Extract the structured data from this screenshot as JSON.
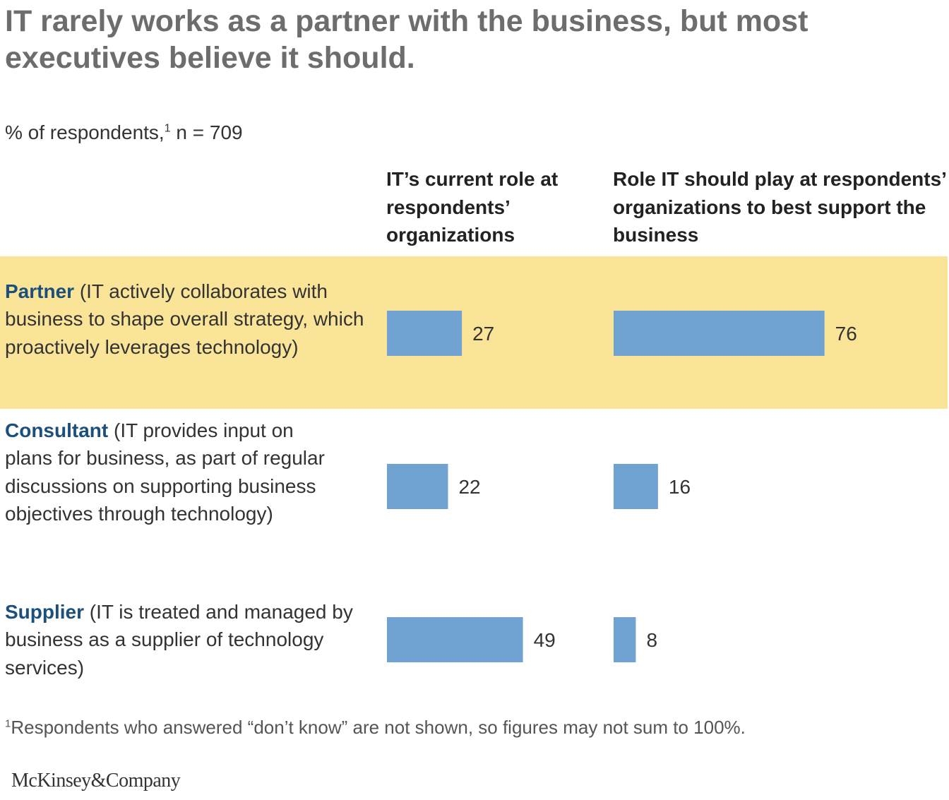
{
  "title": "IT rarely works as a partner with the business, but most executives believe it should.",
  "subtitle": {
    "text": "% of respondents,",
    "footnote_marker": "1",
    "sample": " n = 709"
  },
  "columns": [
    {
      "heading": "IT’s current role at respondents’ organizations"
    },
    {
      "heading": "Role IT should play at respondents’ organizations to best support the business"
    }
  ],
  "rows": [
    {
      "name": "Partner",
      "description": " (IT actively collaborates with business to shape overall strategy, which proactively leverages technology)",
      "highlighted": true
    },
    {
      "name": "Consultant",
      "description": " (IT provides input on plans for business, as part of regular discussions on supporting business objectives through technology)",
      "highlighted": false
    },
    {
      "name": "Supplier",
      "description": " (IT is treated and managed by business as a supplier of technology services)",
      "highlighted": false
    }
  ],
  "chart_data": {
    "type": "bar",
    "orientation": "horizontal",
    "categories": [
      "Partner",
      "Consultant",
      "Supplier"
    ],
    "series": [
      {
        "name": "IT’s current role at respondents’ organizations",
        "values": [
          27,
          22,
          49
        ]
      },
      {
        "name": "Role IT should play at respondents’ organizations to best support the business",
        "values": [
          76,
          16,
          8
        ]
      }
    ],
    "value_labels": [
      "27",
      "22",
      "49",
      "76",
      "16",
      "8"
    ]
  },
  "footnote": {
    "marker": "1",
    "text": "Respondents who answered “don’t know” are not shown, so figures may not sum to 100%."
  },
  "logo": "McKinsey&Company",
  "colors": {
    "bar": "#70a3d2",
    "highlight": "#fae498",
    "category_name": "#1b4f7c",
    "title": "#6d6d6d"
  }
}
